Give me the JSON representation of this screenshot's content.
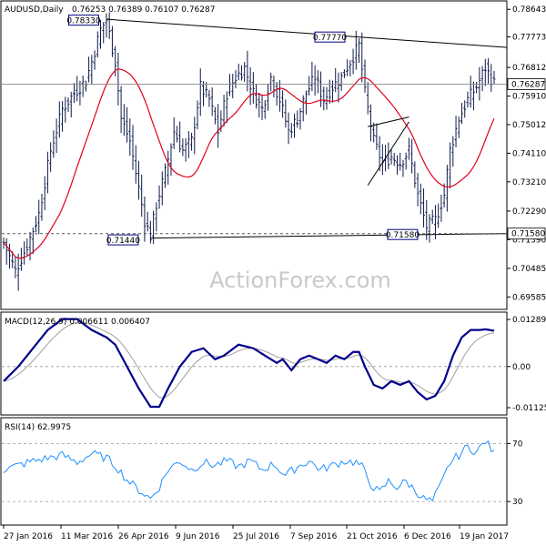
{
  "chart_data": [
    {
      "type": "ohlc",
      "symbol": "AUDUSD,Daily",
      "ohlc_header": "0.76253 0.76389 0.76107 0.76287",
      "y_ticks": [
        "0.78643",
        "0.77773",
        "0.76812",
        "0.75910",
        "0.75012",
        "0.74110",
        "0.73210",
        "0.72290",
        "0.71390",
        "0.70485",
        "0.69585"
      ],
      "ylim": [
        0.6925,
        0.7885
      ],
      "last_price": "0.76287",
      "support_level": "0.71580",
      "annotations": [
        {
          "label": "0.78330",
          "value": 0.7833
        },
        {
          "label": "0.77770",
          "value": 0.7777
        },
        {
          "label": "0.71440",
          "value": 0.7144
        },
        {
          "label": "0.71580",
          "value": 0.7158
        }
      ],
      "x_labels": [
        "27 Jan 2016",
        "11 Mar 2016",
        "26 Apr 2016",
        "9 Jun 2016",
        "25 Jul 2016",
        "7 Sep 2016",
        "21 Oct 2016",
        "6 Dec 2016",
        "19 Jan 2017"
      ],
      "moving_average": {
        "color": "#e0001b"
      },
      "close_anchors": [
        [
          0,
          0.713
        ],
        [
          4,
          0.704
        ],
        [
          8,
          0.712
        ],
        [
          12,
          0.722
        ],
        [
          16,
          0.742
        ],
        [
          20,
          0.755
        ],
        [
          24,
          0.76
        ],
        [
          28,
          0.764
        ],
        [
          30,
          0.77
        ],
        [
          33,
          0.78
        ],
        [
          35,
          0.783
        ],
        [
          38,
          0.77
        ],
        [
          40,
          0.752
        ],
        [
          43,
          0.745
        ],
        [
          46,
          0.73
        ],
        [
          48,
          0.72
        ],
        [
          50,
          0.715
        ],
        [
          52,
          0.725
        ],
        [
          55,
          0.735
        ],
        [
          58,
          0.748
        ],
        [
          61,
          0.742
        ],
        [
          64,
          0.745
        ],
        [
          67,
          0.762
        ],
        [
          70,
          0.758
        ],
        [
          73,
          0.748
        ],
        [
          76,
          0.76
        ],
        [
          79,
          0.765
        ],
        [
          82,
          0.768
        ],
        [
          85,
          0.76
        ],
        [
          88,
          0.755
        ],
        [
          91,
          0.765
        ],
        [
          94,
          0.758
        ],
        [
          97,
          0.748
        ],
        [
          100,
          0.752
        ],
        [
          103,
          0.76
        ],
        [
          106,
          0.765
        ],
        [
          109,
          0.758
        ],
        [
          112,
          0.762
        ],
        [
          115,
          0.765
        ],
        [
          118,
          0.77
        ],
        [
          121,
          0.775
        ],
        [
          123,
          0.76
        ],
        [
          126,
          0.745
        ],
        [
          129,
          0.738
        ],
        [
          132,
          0.74
        ],
        [
          135,
          0.738
        ],
        [
          138,
          0.742
        ],
        [
          141,
          0.728
        ],
        [
          144,
          0.718
        ],
        [
          147,
          0.72
        ],
        [
          150,
          0.728
        ],
        [
          152,
          0.742
        ],
        [
          155,
          0.752
        ],
        [
          158,
          0.758
        ],
        [
          161,
          0.762
        ],
        [
          164,
          0.768
        ],
        [
          167,
          0.763
        ]
      ],
      "macd": {
        "label": "MACD(12,26,9) 0.006611 0.006407",
        "y_ticks": [
          "0.012894",
          "0.00",
          "-0.011253"
        ],
        "ylim": [
          -0.0125,
          0.0139
        ],
        "anchors": [
          [
            0,
            -0.004
          ],
          [
            5,
            0.0
          ],
          [
            10,
            0.005
          ],
          [
            15,
            0.01
          ],
          [
            20,
            0.013
          ],
          [
            25,
            0.013
          ],
          [
            30,
            0.01
          ],
          [
            35,
            0.008
          ],
          [
            38,
            0.006
          ],
          [
            42,
            0.0
          ],
          [
            46,
            -0.006
          ],
          [
            50,
            -0.011
          ],
          [
            53,
            -0.011
          ],
          [
            56,
            -0.006
          ],
          [
            60,
            0.0
          ],
          [
            64,
            0.004
          ],
          [
            68,
            0.005
          ],
          [
            72,
            0.002
          ],
          [
            75,
            0.003
          ],
          [
            80,
            0.006
          ],
          [
            85,
            0.005
          ],
          [
            89,
            0.003
          ],
          [
            93,
            0.001
          ],
          [
            95,
            0.002
          ],
          [
            98,
            -0.001
          ],
          [
            101,
            0.002
          ],
          [
            104,
            0.003
          ],
          [
            107,
            0.002
          ],
          [
            110,
            0.001
          ],
          [
            113,
            0.003
          ],
          [
            116,
            0.002
          ],
          [
            119,
            0.004
          ],
          [
            121,
            0.004
          ],
          [
            123,
            0.0
          ],
          [
            126,
            -0.005
          ],
          [
            129,
            -0.006
          ],
          [
            132,
            -0.004
          ],
          [
            135,
            -0.005
          ],
          [
            138,
            -0.004
          ],
          [
            141,
            -0.007
          ],
          [
            144,
            -0.009
          ],
          [
            147,
            -0.008
          ],
          [
            150,
            -0.004
          ],
          [
            153,
            0.003
          ],
          [
            156,
            0.008
          ],
          [
            159,
            0.01
          ],
          [
            162,
            0.01
          ],
          [
            164,
            0.0102
          ],
          [
            167,
            0.0098
          ]
        ]
      },
      "rsi": {
        "label": "RSI(14) 62.9975",
        "y_ticks": [
          "70",
          "30"
        ],
        "ylim": [
          15,
          86
        ],
        "anchors": [
          [
            0,
            52
          ],
          [
            5,
            55
          ],
          [
            10,
            58
          ],
          [
            15,
            60
          ],
          [
            20,
            62
          ],
          [
            25,
            57
          ],
          [
            30,
            63
          ],
          [
            35,
            60
          ],
          [
            38,
            55
          ],
          [
            42,
            45
          ],
          [
            46,
            38
          ],
          [
            50,
            32
          ],
          [
            53,
            40
          ],
          [
            56,
            52
          ],
          [
            60,
            58
          ],
          [
            64,
            52
          ],
          [
            68,
            57
          ],
          [
            72,
            55
          ],
          [
            76,
            58
          ],
          [
            80,
            54
          ],
          [
            84,
            58
          ],
          [
            88,
            52
          ],
          [
            92,
            56
          ],
          [
            96,
            48
          ],
          [
            100,
            54
          ],
          [
            104,
            58
          ],
          [
            108,
            52
          ],
          [
            112,
            55
          ],
          [
            116,
            58
          ],
          [
            120,
            57
          ],
          [
            122,
            54
          ],
          [
            125,
            42
          ],
          [
            128,
            36
          ],
          [
            131,
            44
          ],
          [
            134,
            40
          ],
          [
            137,
            44
          ],
          [
            140,
            38
          ],
          [
            143,
            32
          ],
          [
            146,
            30
          ],
          [
            149,
            42
          ],
          [
            152,
            57
          ],
          [
            155,
            62
          ],
          [
            158,
            68
          ],
          [
            161,
            64
          ],
          [
            164,
            72
          ],
          [
            167,
            63
          ]
        ]
      }
    }
  ],
  "watermark": "ActionForex.com"
}
